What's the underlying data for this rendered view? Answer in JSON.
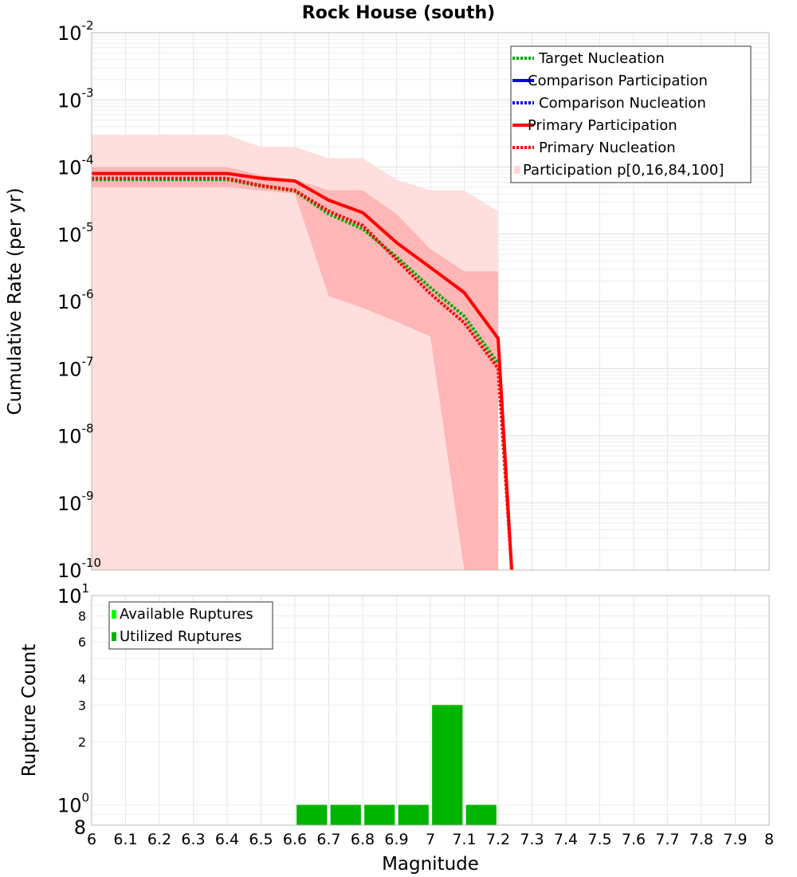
{
  "title": "Rock House (south)",
  "chart_data": [
    {
      "type": "line",
      "ylabel": "Cumulative Rate (per yr)",
      "yscale": "log",
      "ylim": [
        1e-10,
        0.01
      ],
      "xlim": [
        6,
        8
      ],
      "y_tick_exponents": [
        "-2",
        "-3",
        "-4",
        "-5",
        "-6",
        "-7",
        "-8",
        "-9",
        "-10"
      ],
      "grid": true,
      "legend_position": "top-right",
      "legend": [
        {
          "label": "Target Nucleation",
          "color": "#00aa00",
          "style": "dotted"
        },
        {
          "label": "Comparison Participation",
          "color": "#0000ee",
          "style": "solid"
        },
        {
          "label": "Comparison Nucleation",
          "color": "#0000ee",
          "style": "dotted"
        },
        {
          "label": "Primary Participation",
          "color": "#ff0000",
          "style": "solid"
        },
        {
          "label": "Primary Nucleation",
          "color": "#ff0000",
          "style": "dotted"
        },
        {
          "label": "Participation p[0,16,84,100]",
          "color": "#ffd6d6",
          "style": "band"
        }
      ],
      "series": [
        {
          "name": "Participation p[0,16,84,100]",
          "kind": "band-outer",
          "color": "#ffdede",
          "x": [
            6.0,
            6.4,
            6.5,
            6.6,
            6.7,
            6.8,
            6.9,
            7.0,
            7.1,
            7.2
          ],
          "upper": [
            0.0003,
            0.0003,
            0.0002,
            0.0002,
            0.000135,
            0.000135,
            6.5e-05,
            4.5e-05,
            4.5e-05,
            2.2e-05
          ],
          "lower": [
            1e-10,
            1e-10,
            1e-10,
            1e-10,
            1e-10,
            1e-10,
            1e-10,
            1e-10,
            1e-10,
            1e-10
          ]
        },
        {
          "name": "Participation p[16,84]",
          "kind": "band-inner",
          "color": "#ffb6b6",
          "x": [
            6.0,
            6.4,
            6.5,
            6.6,
            6.7,
            6.8,
            6.9,
            7.0,
            7.1,
            7.2
          ],
          "upper": [
            0.0001,
            0.0001,
            7.5e-05,
            6.5e-05,
            4.5e-05,
            4.5e-05,
            2e-05,
            6e-06,
            2.8e-06,
            2.8e-06
          ],
          "lower": [
            5e-05,
            5e-05,
            4.5e-05,
            4e-05,
            1.2e-06,
            8e-07,
            5e-07,
            3e-07,
            1e-10,
            1e-10
          ]
        },
        {
          "name": "Primary Participation",
          "color": "#ff0000",
          "style": "solid",
          "x": [
            6.0,
            6.4,
            6.5,
            6.6,
            6.7,
            6.8,
            6.9,
            7.0,
            7.1,
            7.2,
            7.24
          ],
          "y": [
            8e-05,
            8e-05,
            6.8e-05,
            6.2e-05,
            3.2e-05,
            2.1e-05,
            7.5e-06,
            3.2e-06,
            1.35e-06,
            2.8e-07,
            1e-10
          ]
        },
        {
          "name": "Target Nucleation",
          "color": "#00aa00",
          "style": "dotted",
          "x": [
            6.0,
            6.4,
            6.5,
            6.6,
            6.7,
            6.8,
            6.9,
            7.0,
            7.1,
            7.2
          ],
          "y": [
            6.5e-05,
            6.5e-05,
            5.2e-05,
            4.4e-05,
            2e-05,
            1.2e-05,
            4.6e-06,
            1.6e-06,
            6e-07,
            1.2e-07
          ]
        },
        {
          "name": "Primary Nucleation",
          "color": "#ff0000",
          "style": "dotted",
          "x": [
            6.0,
            6.4,
            6.5,
            6.6,
            6.7,
            6.8,
            6.9,
            7.0,
            7.1,
            7.2,
            7.24
          ],
          "y": [
            6.8e-05,
            6.8e-05,
            5.3e-05,
            4.5e-05,
            2.2e-05,
            1.35e-05,
            4.2e-06,
            1.3e-06,
            4.8e-07,
            1e-07,
            1e-10
          ]
        }
      ]
    },
    {
      "type": "bar",
      "ylabel": "Rupture Count",
      "xlabel": "Magnitude",
      "yscale": "log",
      "ylim": [
        0.8,
        10
      ],
      "xlim": [
        6,
        8
      ],
      "x_ticks": [
        "6",
        "6.1",
        "6.2",
        "6.3",
        "6.4",
        "6.5",
        "6.6",
        "6.7",
        "6.8",
        "6.9",
        "7",
        "7.1",
        "7.2",
        "7.3",
        "7.4",
        "7.5",
        "7.6",
        "7.7",
        "7.8",
        "7.9",
        "8"
      ],
      "y_minor_tick_labels": [
        "8",
        "6",
        "4",
        "3",
        "2",
        "8"
      ],
      "y_major_tick_labels": [
        {
          "base": "10",
          "exp": "1"
        },
        {
          "base": "10",
          "exp": "0"
        }
      ],
      "legend_position": "top-left",
      "legend": [
        {
          "label": "Available Ruptures",
          "color": "#00ff00"
        },
        {
          "label": "Utilized Ruptures",
          "color": "#00b400"
        }
      ],
      "bar_width": 0.09,
      "series": [
        {
          "name": "Utilized Ruptures",
          "color": "#00b400",
          "x": [
            6.65,
            6.75,
            6.85,
            6.95,
            7.05,
            7.15
          ],
          "values": [
            1,
            1,
            1,
            1,
            3,
            1
          ]
        }
      ]
    }
  ]
}
